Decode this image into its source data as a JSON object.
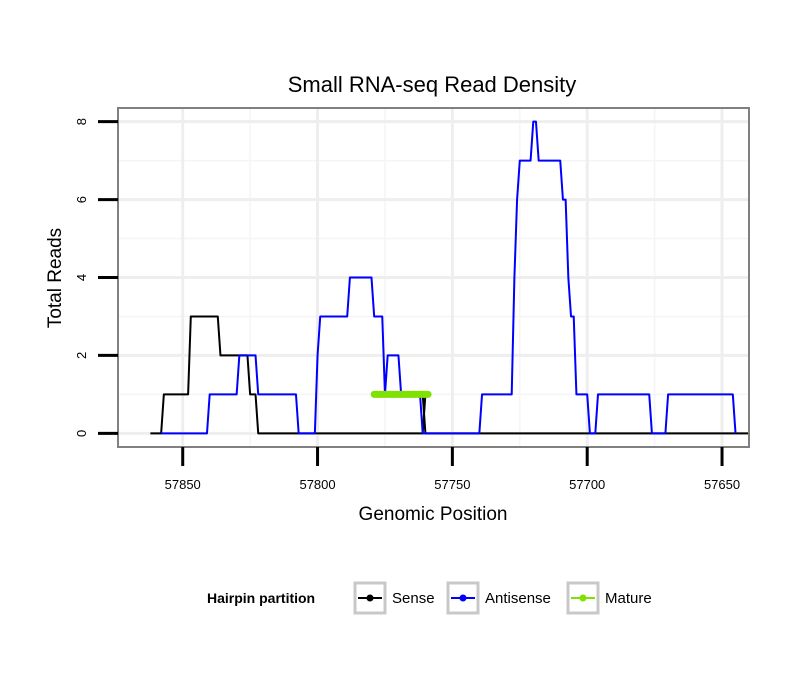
{
  "chart_data": {
    "type": "line",
    "title": "Small RNA-seq Read Density",
    "xlabel": "Genomic Position",
    "ylabel": "Total Reads",
    "x_reversed": true,
    "xlim": [
      57874,
      57640
    ],
    "ylim": [
      -0.35,
      8.35
    ],
    "x_ticks": [
      57850,
      57800,
      57750,
      57700,
      57650
    ],
    "x_tick_labels": [
      "57850",
      "57800",
      "57750",
      "57700",
      "57650"
    ],
    "y_ticks": [
      0,
      2,
      4,
      6,
      8
    ],
    "y_tick_labels": [
      "0",
      "2",
      "4",
      "6",
      "8"
    ],
    "grid": true,
    "legend": {
      "title": "Hairpin partition",
      "position": "bottom",
      "entries": [
        {
          "name": "Sense",
          "color": "#000000"
        },
        {
          "name": "Antisense",
          "color": "#0000ff"
        },
        {
          "name": "Mature",
          "color": "#80e000"
        }
      ]
    },
    "series": [
      {
        "name": "Sense",
        "color": "#000000",
        "points": [
          [
            57862,
            0
          ],
          [
            57858,
            0
          ],
          [
            57857,
            1
          ],
          [
            57848,
            1
          ],
          [
            57847,
            3
          ],
          [
            57837,
            3
          ],
          [
            57836,
            2
          ],
          [
            57826,
            2
          ],
          [
            57825,
            1
          ],
          [
            57823,
            1
          ],
          [
            57822,
            0
          ],
          [
            57814,
            0
          ],
          [
            57813,
            0
          ],
          [
            57761,
            0
          ],
          [
            57760,
            1
          ],
          [
            57761,
            1
          ],
          [
            57760,
            0
          ],
          [
            57640,
            0
          ]
        ]
      },
      {
        "name": "Antisense",
        "color": "#0000ff",
        "points": [
          [
            57858,
            0
          ],
          [
            57841,
            0
          ],
          [
            57840,
            1
          ],
          [
            57830,
            1
          ],
          [
            57829,
            2
          ],
          [
            57823,
            2
          ],
          [
            57822,
            1
          ],
          [
            57808,
            1
          ],
          [
            57807,
            0
          ],
          [
            57801,
            0
          ],
          [
            57800,
            2
          ],
          [
            57799,
            3
          ],
          [
            57789,
            3
          ],
          [
            57788,
            4
          ],
          [
            57780,
            4
          ],
          [
            57779,
            3
          ],
          [
            57776,
            3
          ],
          [
            57775,
            1
          ],
          [
            57774,
            2
          ],
          [
            57770,
            2
          ],
          [
            57769,
            1
          ],
          [
            57762,
            1
          ],
          [
            57761,
            0
          ],
          [
            57740,
            0
          ],
          [
            57739,
            1
          ],
          [
            57728,
            1
          ],
          [
            57727,
            4
          ],
          [
            57726,
            6
          ],
          [
            57725,
            7
          ],
          [
            57721,
            7
          ],
          [
            57720,
            8
          ],
          [
            57719,
            8
          ],
          [
            57718,
            7
          ],
          [
            57710,
            7
          ],
          [
            57709,
            6
          ],
          [
            57708,
            6
          ],
          [
            57707,
            4
          ],
          [
            57706,
            3
          ],
          [
            57705,
            3
          ],
          [
            57704,
            1
          ],
          [
            57700,
            1
          ],
          [
            57699,
            0
          ],
          [
            57697,
            0
          ],
          [
            57696,
            1
          ],
          [
            57677,
            1
          ],
          [
            57676,
            0
          ],
          [
            57671,
            0
          ],
          [
            57670,
            1
          ],
          [
            57646,
            1
          ],
          [
            57645,
            0
          ]
        ]
      },
      {
        "name": "Mature",
        "color": "#80e000",
        "points": [
          [
            57779,
            1
          ],
          [
            57759,
            1
          ]
        ]
      }
    ]
  }
}
